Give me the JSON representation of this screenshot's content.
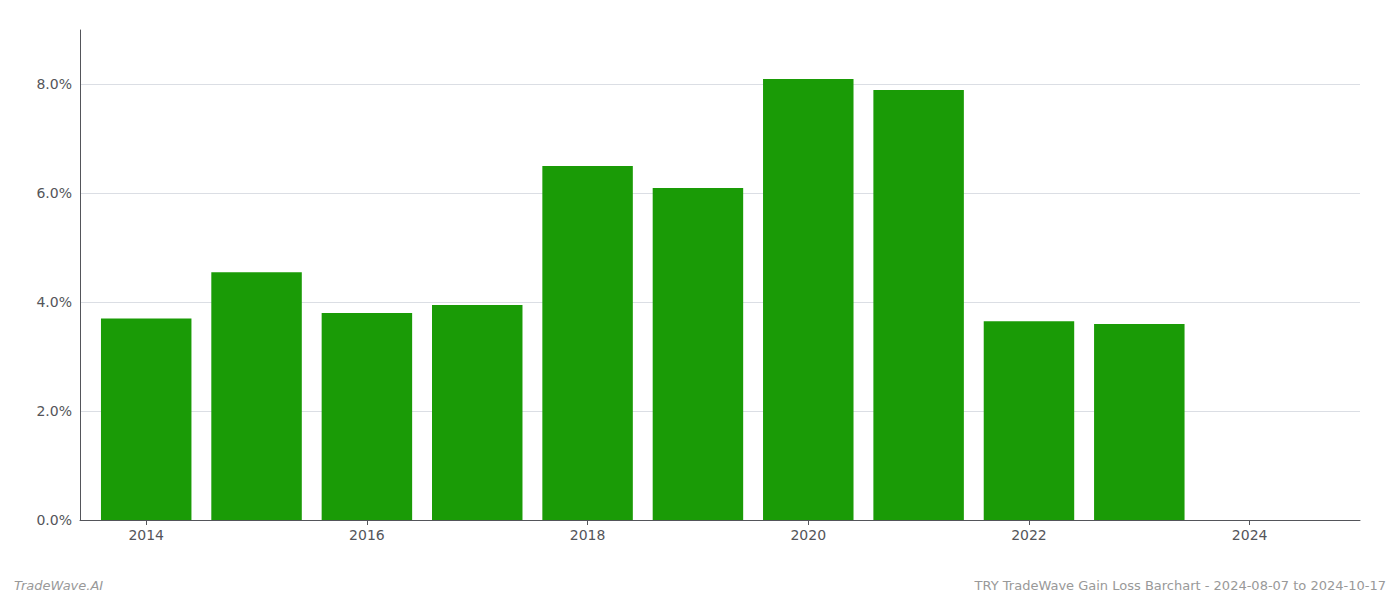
{
  "chart_data": {
    "type": "bar",
    "x": [
      2014,
      2015,
      2016,
      2017,
      2018,
      2019,
      2020,
      2021,
      2022,
      2023
    ],
    "values": [
      0.037,
      0.0455,
      0.038,
      0.0395,
      0.065,
      0.061,
      0.081,
      0.079,
      0.0365,
      0.036
    ],
    "color": "#1a9b06",
    "xlim": [
      2013.4,
      2025.0
    ],
    "xticks": [
      2014,
      2016,
      2018,
      2020,
      2022,
      2024
    ],
    "ylim": [
      0,
      0.09
    ],
    "yticks": [
      {
        "value": 0.0,
        "label": "0.0%"
      },
      {
        "value": 0.02,
        "label": "2.0%"
      },
      {
        "value": 0.04,
        "label": "4.0%"
      },
      {
        "value": 0.06,
        "label": "6.0%"
      },
      {
        "value": 0.08,
        "label": "8.0%"
      }
    ],
    "annotations": [
      "TradeWave.AI",
      "TRY TradeWave Gain Loss Barchart - 2024-08-07 to 2024-10-17"
    ],
    "grid": true
  }
}
